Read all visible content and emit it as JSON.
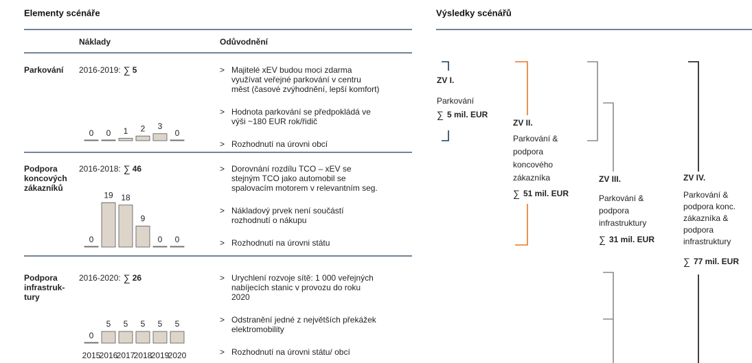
{
  "left": {
    "title": "Elementy scénáře",
    "col_costs": "Náklady",
    "col_reason": "Odůvodnění",
    "sigma": "∑",
    "bullet": ">",
    "years": [
      "2015",
      "2016",
      "2017",
      "2018",
      "2019",
      "2020"
    ],
    "rows": [
      {
        "label": [
          "Parkování"
        ],
        "period": "2016-2019:",
        "total": 5,
        "values": [
          0,
          0,
          1,
          2,
          3,
          0
        ],
        "reasons": [
          [
            "Majitelé xEV budou moci zdarma",
            "využívat veřejné parkování v centru",
            "měst (časové zvýhodnění, lepší komfort)"
          ],
          [
            "Hodnota parkování se předpokládá ve",
            "výši ~180 EUR rok/řidič"
          ],
          [
            "Rozhodnutí na úrovni obcí"
          ]
        ]
      },
      {
        "label": [
          "Podpora",
          "koncových",
          "zákazníků"
        ],
        "period": "2016-2018:",
        "total": 46,
        "values": [
          0,
          19,
          18,
          9,
          0,
          0
        ],
        "reasons": [
          [
            "Dorovnání rozdílu TCO – xEV se",
            "stejným TCO jako automobil se",
            "spalovacím motorem v relevantním seg."
          ],
          [
            "Nákladový prvek není součástí",
            "rozhodnutí o nákupu"
          ],
          [
            "Rozhodnutí na úrovni státu"
          ]
        ]
      },
      {
        "label": [
          "Podpora",
          "infrastruk-",
          "tury"
        ],
        "period": "2016-2020:",
        "total": 26,
        "values": [
          0,
          5,
          5,
          5,
          5,
          5
        ],
        "reasons": [
          [
            "Urychlení rozvoje sítě: 1 000 veřejných",
            "nabíjecích stanic v provozu do roku",
            "2020"
          ],
          [
            "Odstranění jedné z největších překážek",
            "elektromobility"
          ],
          [
            "Rozhodnutí na úrovni státu/ obcí"
          ]
        ]
      }
    ]
  },
  "right": {
    "title": "Výsledky scénářů",
    "sigma": "∑",
    "scenarios": [
      {
        "id": "ZV I.",
        "color": "#1f3b57",
        "lines": [
          "Parkování"
        ],
        "sum": "5 mil. EUR"
      },
      {
        "id": "ZV II.",
        "color": "#e87722",
        "lines": [
          "Parkování &",
          "podpora",
          "koncového",
          "zákazníka"
        ],
        "sum": "51 mil. EUR"
      },
      {
        "id": "ZV III.",
        "color": "#8a8a8a",
        "lines": [
          "Parkování &",
          "podpora",
          "infrastruktury"
        ],
        "sum": "31 mil. EUR"
      },
      {
        "id": "ZV IV.",
        "color": "#111111",
        "lines": [
          "Parkování &",
          "podpora konc.",
          "zákazníka &",
          "podpora",
          "infrastruktury"
        ],
        "sum": "77 mil. EUR"
      }
    ]
  }
}
